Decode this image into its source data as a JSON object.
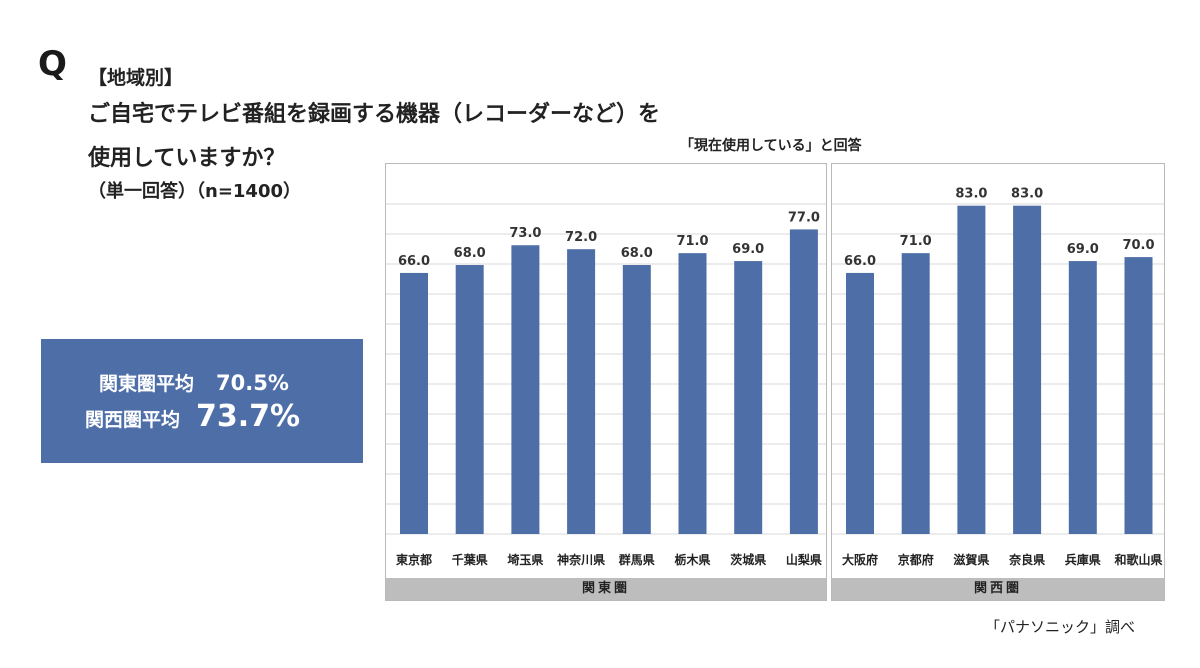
{
  "question": {
    "mark": "Q",
    "category": "【地域別】",
    "line1": "ご自宅でテレビ番組を録画する機器（レコーダーなど）を",
    "line2": "使用していますか？",
    "note": "（単一回答）（n=1400）"
  },
  "averages": {
    "kanto_label": "関東圏平均",
    "kanto_value": "70.5%",
    "kansai_label": "関西圏平均",
    "kansai_value": "73.7%"
  },
  "chart_heading": "「現在使用している」と回答",
  "source": "「パナソニック」調べ",
  "colors": {
    "bar": "#4e6ea8",
    "group_band": "#bdbdbd",
    "grid": "#d9d9d9"
  },
  "chart_data": [
    {
      "type": "bar",
      "group": "関東圏",
      "categories": [
        "東京都",
        "千葉県",
        "埼玉県",
        "神奈川県",
        "群馬県",
        "栃木県",
        "茨城県",
        "山梨県"
      ],
      "values": [
        66.0,
        68.0,
        73.0,
        72.0,
        68.0,
        71.0,
        69.0,
        77.0
      ],
      "ylim": [
        0,
        90
      ],
      "grid": true
    },
    {
      "type": "bar",
      "group": "関西圏",
      "categories": [
        "大阪府",
        "京都府",
        "滋賀県",
        "奈良県",
        "兵庫県",
        "和歌山県"
      ],
      "values": [
        66.0,
        71.0,
        83.0,
        83.0,
        69.0,
        70.0
      ],
      "ylim": [
        0,
        90
      ],
      "grid": true
    }
  ]
}
